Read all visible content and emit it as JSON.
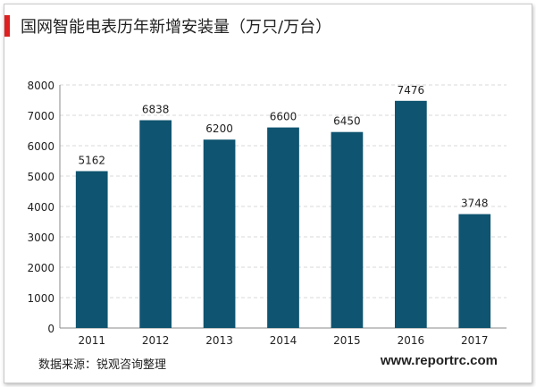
{
  "header": {
    "title": "国网智能电表历年新增安装量（万只/万台）",
    "accent_color": "#e02020"
  },
  "chart_data": {
    "type": "bar",
    "title": "国网智能电表历年新增安装量（万只/万台）",
    "xlabel": "",
    "ylabel": "",
    "categories": [
      "2011",
      "2012",
      "2013",
      "2014",
      "2015",
      "2016",
      "2017"
    ],
    "values": [
      5162,
      6838,
      6200,
      6600,
      6450,
      7476,
      3748
    ],
    "ylim": [
      0,
      8000
    ],
    "yticks": [
      "0",
      "1000",
      "2000",
      "3000",
      "4000",
      "5000",
      "6000",
      "7000",
      "8000"
    ],
    "grid": true,
    "legend": "none",
    "bar_color": "#0f5470"
  },
  "footer": {
    "source": "数据来源：锐观咨询整理",
    "website": "www.reportrc.com"
  }
}
